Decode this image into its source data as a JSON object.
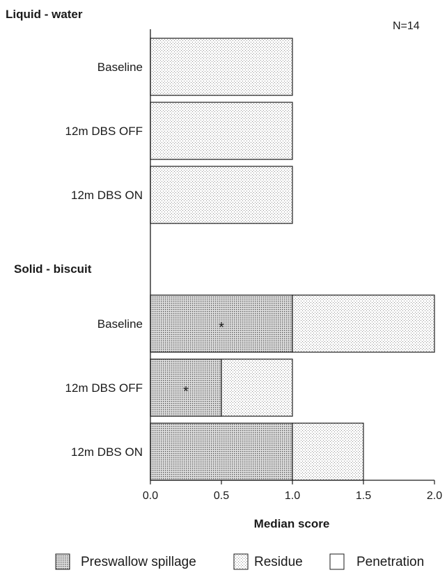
{
  "chart_data": {
    "type": "bar",
    "orientation": "horizontal",
    "stacked": true,
    "n_label": "N=14",
    "groups": [
      {
        "title": "Liquid - water",
        "categories": [
          "Baseline",
          "12m DBS OFF",
          "12m DBS ON"
        ],
        "series": [
          {
            "name": "Preswallow spillage",
            "values": [
              0,
              0,
              0
            ]
          },
          {
            "name": "Residue",
            "values": [
              1,
              1,
              1
            ]
          },
          {
            "name": "Penetration",
            "values": [
              0,
              0,
              0
            ]
          }
        ],
        "significance": [
          "",
          "",
          ""
        ]
      },
      {
        "title": "Solid - biscuit",
        "categories": [
          "Baseline",
          "12m DBS OFF",
          "12m DBS ON"
        ],
        "series": [
          {
            "name": "Preswallow spillage",
            "values": [
              1,
              0.5,
              1
            ]
          },
          {
            "name": "Residue",
            "values": [
              1,
              0.5,
              0.5
            ]
          },
          {
            "name": "Penetration",
            "values": [
              0,
              0,
              0
            ]
          }
        ],
        "significance": [
          "*",
          "*",
          ""
        ]
      }
    ],
    "xlabel": "Median score",
    "xlim": [
      0,
      2.0
    ],
    "xticks": [
      "0.0",
      "0.5",
      "1.0",
      "1.5",
      "2.0"
    ],
    "legend": {
      "position": "bottom",
      "items": [
        "Preswallow spillage",
        "Residue",
        "Penetration"
      ]
    },
    "colors": {
      "preswallow_fill": "#e0e0e0",
      "preswallow_dot": "#5a5a5a",
      "residue_fill": "#ffffff",
      "residue_dot": "#8a8a8a",
      "penetration_fill": "#ffffff",
      "stroke": "#1a1a1a"
    }
  }
}
